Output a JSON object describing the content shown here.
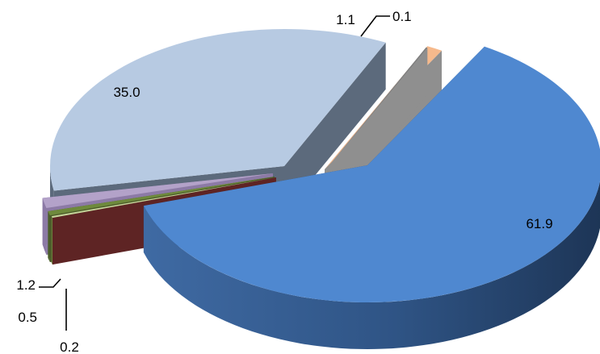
{
  "chart_data": {
    "type": "pie",
    "style": "3d-exploded",
    "slices": [
      {
        "value": 61.9,
        "label": "61.9",
        "color": "#4f88d0"
      },
      {
        "value": 0.2,
        "label": "0.2",
        "color": "#c5d79b"
      },
      {
        "value": 0.5,
        "label": "0.5",
        "color": "#6e8a3c"
      },
      {
        "value": 1.2,
        "label": "1.2",
        "color": "#b3a2c9"
      },
      {
        "value": 35.0,
        "label": "35.0",
        "color": "#b7cae2"
      },
      {
        "value": 0.1,
        "label": "0.1",
        "color": "#7f7f7f"
      },
      {
        "value": 1.1,
        "label": "1.1",
        "color": "#f6b98c"
      }
    ],
    "side_colors": [
      "#2a4a78",
      "#6d8a40",
      "#4b5e2a",
      "#8c7aa6",
      "#5c6a7c",
      "#8f8f8f",
      "#8f8f8f"
    ],
    "wall_colors": [
      "#24456e",
      "#9fb576",
      "#4b5e2a",
      "#8c7aa6",
      "#5c6a7c",
      "#8f8f8f",
      "#8f8f8f"
    ],
    "deep_face_color": "#5e2424",
    "legend": "none",
    "title": ""
  }
}
